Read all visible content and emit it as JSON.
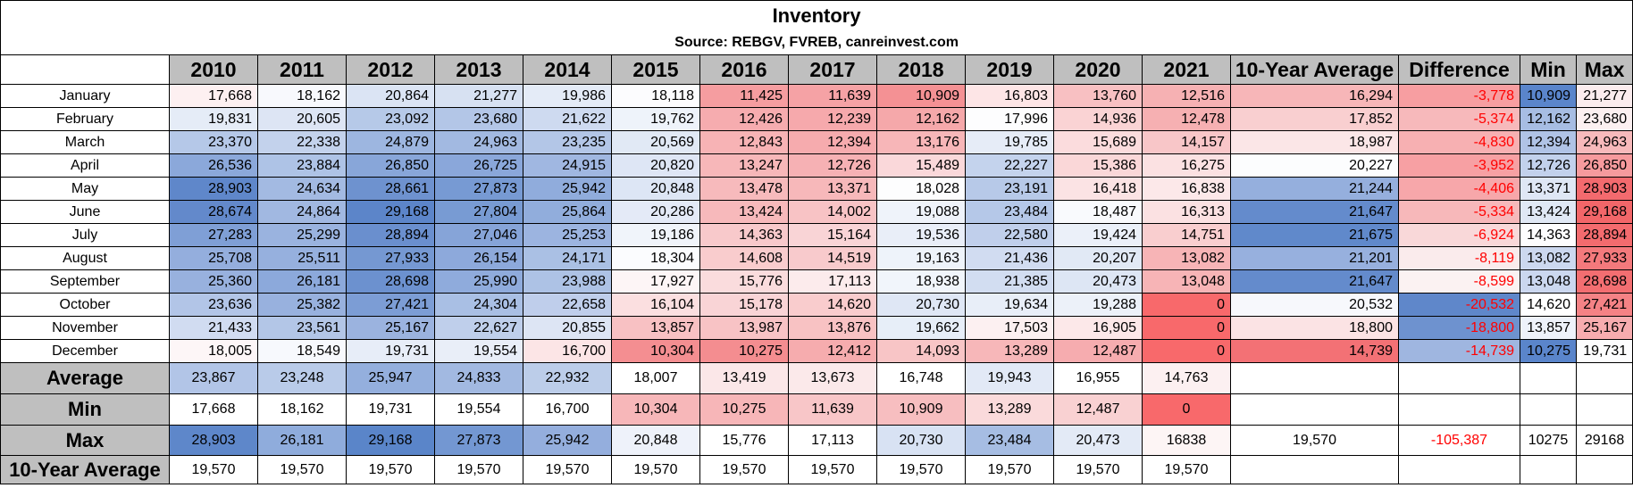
{
  "title": "Inventory",
  "source": "Source: REBGV, FVREB, canreinvest.com",
  "columns": [
    "2010",
    "2011",
    "2012",
    "2013",
    "2014",
    "2015",
    "2016",
    "2017",
    "2018",
    "2019",
    "2020",
    "2021",
    "10-Year Average",
    "Difference",
    "Min",
    "Max"
  ],
  "rows": [
    {
      "label": "January",
      "cells": [
        {
          "v": "17,668",
          "bg": "#fdf0f1"
        },
        {
          "v": "18,162",
          "bg": "#f8f9fd"
        },
        {
          "v": "20,864",
          "bg": "#dbe4f4"
        },
        {
          "v": "21,277",
          "bg": "#d7e1f2"
        },
        {
          "v": "19,986",
          "bg": "#e4ebf7"
        },
        {
          "v": "18,118",
          "bg": "#fcfcfe"
        },
        {
          "v": "11,425",
          "bg": "#f59da0"
        },
        {
          "v": "11,639",
          "bg": "#f5a2a5"
        },
        {
          "v": "10,909",
          "bg": "#f49194"
        },
        {
          "v": "16,803",
          "bg": "#fde5e6"
        },
        {
          "v": "13,760",
          "bg": "#f8c0c2"
        },
        {
          "v": "12,516",
          "bg": "#f6b1b3"
        },
        {
          "v": "16,294",
          "bg": "#f7b6b8"
        },
        {
          "v": "-3,778",
          "bg": "#f79ea1",
          "neg": true
        },
        {
          "v": "10,909",
          "bg": "#5a85cb"
        },
        {
          "v": "21,277",
          "bg": "#fbecee"
        }
      ]
    },
    {
      "label": "February",
      "cells": [
        {
          "v": "19,831",
          "bg": "#e5ecf7"
        },
        {
          "v": "20,605",
          "bg": "#dde5f4"
        },
        {
          "v": "23,092",
          "bg": "#b6c9e8"
        },
        {
          "v": "23,680",
          "bg": "#b3c6e7"
        },
        {
          "v": "21,622",
          "bg": "#cedaf0"
        },
        {
          "v": "19,762",
          "bg": "#eef3fa"
        },
        {
          "v": "12,426",
          "bg": "#f6acaf"
        },
        {
          "v": "12,239",
          "bg": "#f6a9ac"
        },
        {
          "v": "12,162",
          "bg": "#f5a8aa"
        },
        {
          "v": "17,996",
          "bg": "#fdfdfe"
        },
        {
          "v": "14,936",
          "bg": "#fad3d4"
        },
        {
          "v": "12,478",
          "bg": "#f6b0b2"
        },
        {
          "v": "17,852",
          "bg": "#f9cfd0"
        },
        {
          "v": "-5,374",
          "bg": "#f7b9bb",
          "neg": true
        },
        {
          "v": "12,162",
          "bg": "#a7bde3"
        },
        {
          "v": "23,680",
          "bg": "#fcf0f1"
        }
      ]
    },
    {
      "label": "March",
      "cells": [
        {
          "v": "23,370",
          "bg": "#b5c8e8"
        },
        {
          "v": "22,338",
          "bg": "#c3d2ec"
        },
        {
          "v": "24,879",
          "bg": "#9db6e0"
        },
        {
          "v": "24,963",
          "bg": "#a2b9e1"
        },
        {
          "v": "23,235",
          "bg": "#b3c6e7"
        },
        {
          "v": "20,569",
          "bg": "#e1e9f5"
        },
        {
          "v": "12,843",
          "bg": "#f7b3b5"
        },
        {
          "v": "12,394",
          "bg": "#f6abae"
        },
        {
          "v": "13,176",
          "bg": "#f7b6b8"
        },
        {
          "v": "19,785",
          "bg": "#e6ecf7"
        },
        {
          "v": "15,689",
          "bg": "#fbdcdd"
        },
        {
          "v": "14,157",
          "bg": "#f8c6c8"
        },
        {
          "v": "18,987",
          "bg": "#fbe6e7"
        },
        {
          "v": "-4,830",
          "bg": "#f7b0b2",
          "neg": true
        },
        {
          "v": "12,394",
          "bg": "#b0c3e6"
        },
        {
          "v": "24,963",
          "bg": "#f7b9bb"
        }
      ]
    },
    {
      "label": "April",
      "cells": [
        {
          "v": "26,536",
          "bg": "#8ba8da"
        },
        {
          "v": "23,884",
          "bg": "#aec3e6"
        },
        {
          "v": "26,850",
          "bg": "#88a6d9"
        },
        {
          "v": "26,725",
          "bg": "#8aa7da"
        },
        {
          "v": "24,915",
          "bg": "#a0b7e1"
        },
        {
          "v": "20,820",
          "bg": "#dee6f5"
        },
        {
          "v": "13,247",
          "bg": "#f7b7b9"
        },
        {
          "v": "12,726",
          "bg": "#f6b1b4"
        },
        {
          "v": "15,489",
          "bg": "#fad8da"
        },
        {
          "v": "22,227",
          "bg": "#c4d3ed"
        },
        {
          "v": "15,386",
          "bg": "#fad7d8"
        },
        {
          "v": "16,275",
          "bg": "#fbe1e2"
        },
        {
          "v": "20,227",
          "bg": "#fcfdfe"
        },
        {
          "v": "-3,952",
          "bg": "#f7a0a3",
          "neg": true
        },
        {
          "v": "12,726",
          "bg": "#c2d1ec"
        },
        {
          "v": "26,850",
          "bg": "#f69a9d"
        }
      ]
    },
    {
      "label": "May",
      "cells": [
        {
          "v": "28,903",
          "bg": "#5f87ca"
        },
        {
          "v": "24,634",
          "bg": "#a3bae2"
        },
        {
          "v": "28,661",
          "bg": "#6e92cf"
        },
        {
          "v": "27,873",
          "bg": "#779ad3"
        },
        {
          "v": "25,942",
          "bg": "#90acdc"
        },
        {
          "v": "20,848",
          "bg": "#dde6f5"
        },
        {
          "v": "13,478",
          "bg": "#f7babc"
        },
        {
          "v": "13,371",
          "bg": "#f7b8ba"
        },
        {
          "v": "18,028",
          "bg": "#fdfdfe"
        },
        {
          "v": "23,191",
          "bg": "#b7c9e8"
        },
        {
          "v": "16,418",
          "bg": "#fbe3e4"
        },
        {
          "v": "16,838",
          "bg": "#fce8e9"
        },
        {
          "v": "21,244",
          "bg": "#95afdd"
        },
        {
          "v": "-4,406",
          "bg": "#f7a7aa",
          "neg": true
        },
        {
          "v": "13,371",
          "bg": "#dfe7f5"
        },
        {
          "v": "28,903",
          "bg": "#f36a6e"
        }
      ]
    },
    {
      "label": "June",
      "cells": [
        {
          "v": "28,674",
          "bg": "#6389cb"
        },
        {
          "v": "24,864",
          "bg": "#a1b8e1"
        },
        {
          "v": "29,168",
          "bg": "#5c85c9"
        },
        {
          "v": "27,804",
          "bg": "#789bd3"
        },
        {
          "v": "25,864",
          "bg": "#91addc"
        },
        {
          "v": "20,286",
          "bg": "#e4eaf7"
        },
        {
          "v": "13,424",
          "bg": "#f7b9bb"
        },
        {
          "v": "14,002",
          "bg": "#f8c3c5"
        },
        {
          "v": "19,088",
          "bg": "#eff3fa"
        },
        {
          "v": "23,484",
          "bg": "#b5c8e8"
        },
        {
          "v": "18,487",
          "bg": "#f9fafd"
        },
        {
          "v": "16,313",
          "bg": "#fbe1e2"
        },
        {
          "v": "21,647",
          "bg": "#648bcc"
        },
        {
          "v": "-5,334",
          "bg": "#f7b8ba",
          "neg": true
        },
        {
          "v": "13,424",
          "bg": "#e0e8f5"
        },
        {
          "v": "29,168",
          "bg": "#f26669"
        }
      ]
    },
    {
      "label": "July",
      "cells": [
        {
          "v": "27,283",
          "bg": "#7f9fd6"
        },
        {
          "v": "25,299",
          "bg": "#9ab3df"
        },
        {
          "v": "28,894",
          "bg": "#6a8fce"
        },
        {
          "v": "27,046",
          "bg": "#86a4d8"
        },
        {
          "v": "25,253",
          "bg": "#9cb4e0"
        },
        {
          "v": "19,186",
          "bg": "#f0f4fa"
        },
        {
          "v": "14,363",
          "bg": "#f8c9cb"
        },
        {
          "v": "15,164",
          "bg": "#f9d4d6"
        },
        {
          "v": "19,536",
          "bg": "#e9eef8"
        },
        {
          "v": "22,580",
          "bg": "#c0cfeb"
        },
        {
          "v": "19,424",
          "bg": "#ebf0f9"
        },
        {
          "v": "14,751",
          "bg": "#f9cecf"
        },
        {
          "v": "21,675",
          "bg": "#6089cb"
        },
        {
          "v": "-6,924",
          "bg": "#f9d8d9",
          "neg": true
        },
        {
          "v": "14,363",
          "bg": "#fdfdfe"
        },
        {
          "v": "28,894",
          "bg": "#f36b6e"
        }
      ]
    },
    {
      "label": "August",
      "cells": [
        {
          "v": "25,708",
          "bg": "#94aedd"
        },
        {
          "v": "25,511",
          "bg": "#96b0de"
        },
        {
          "v": "27,933",
          "bg": "#7598d2"
        },
        {
          "v": "26,154",
          "bg": "#8da9db"
        },
        {
          "v": "24,171",
          "bg": "#aac0e4"
        },
        {
          "v": "18,304",
          "bg": "#fbfcfe"
        },
        {
          "v": "14,608",
          "bg": "#f9cccd"
        },
        {
          "v": "14,519",
          "bg": "#f8cacc"
        },
        {
          "v": "19,163",
          "bg": "#eef3fa"
        },
        {
          "v": "21,436",
          "bg": "#d1dcf1"
        },
        {
          "v": "20,207",
          "bg": "#e1e9f5"
        },
        {
          "v": "13,082",
          "bg": "#f7b4b6"
        },
        {
          "v": "21,201",
          "bg": "#97b0de"
        },
        {
          "v": "-8,119",
          "bg": "#faebec",
          "neg": true
        },
        {
          "v": "13,082",
          "bg": "#ccd8ef"
        },
        {
          "v": "27,933",
          "bg": "#f4797c"
        }
      ]
    },
    {
      "label": "September",
      "cells": [
        {
          "v": "25,360",
          "bg": "#98b1de"
        },
        {
          "v": "26,181",
          "bg": "#8ca9db"
        },
        {
          "v": "28,698",
          "bg": "#6c91cf"
        },
        {
          "v": "25,990",
          "bg": "#8fabdc"
        },
        {
          "v": "23,988",
          "bg": "#adc2e5"
        },
        {
          "v": "17,927",
          "bg": "#fdf5f6"
        },
        {
          "v": "15,776",
          "bg": "#fadcdd"
        },
        {
          "v": "17,113",
          "bg": "#fcebec"
        },
        {
          "v": "18,938",
          "bg": "#f1f5fb"
        },
        {
          "v": "21,385",
          "bg": "#d2ddf1"
        },
        {
          "v": "20,473",
          "bg": "#dde6f4"
        },
        {
          "v": "13,048",
          "bg": "#f7b4b6"
        },
        {
          "v": "21,647",
          "bg": "#648bcc"
        },
        {
          "v": "-8,599",
          "bg": "#fbf2f2",
          "neg": true
        },
        {
          "v": "13,048",
          "bg": "#cbd7ef"
        },
        {
          "v": "28,698",
          "bg": "#f36e71"
        }
      ]
    },
    {
      "label": "October",
      "cells": [
        {
          "v": "23,636",
          "bg": "#b2c5e7"
        },
        {
          "v": "25,382",
          "bg": "#98b1de"
        },
        {
          "v": "27,421",
          "bg": "#7c9dd5"
        },
        {
          "v": "24,304",
          "bg": "#a9bfe4"
        },
        {
          "v": "22,658",
          "bg": "#bfceeb"
        },
        {
          "v": "16,104",
          "bg": "#fbdfe0"
        },
        {
          "v": "15,178",
          "bg": "#f9d4d6"
        },
        {
          "v": "14,620",
          "bg": "#f9cccd"
        },
        {
          "v": "20,730",
          "bg": "#dfe7f5"
        },
        {
          "v": "19,634",
          "bg": "#e8eef8"
        },
        {
          "v": "19,288",
          "bg": "#ecf1f9"
        },
        {
          "v": "0",
          "bg": "#f8696b"
        },
        {
          "v": "20,532",
          "bg": "#f7f8fc"
        },
        {
          "v": "-20,532",
          "bg": "#5f87ca",
          "neg": true
        },
        {
          "v": "14,620",
          "bg": "#ffffff"
        },
        {
          "v": "27,421",
          "bg": "#f58285"
        }
      ]
    },
    {
      "label": "November",
      "cells": [
        {
          "v": "21,433",
          "bg": "#d1dcf1"
        },
        {
          "v": "23,561",
          "bg": "#b3c6e7"
        },
        {
          "v": "25,167",
          "bg": "#9bb3df"
        },
        {
          "v": "22,627",
          "bg": "#bfcfeb"
        },
        {
          "v": "20,855",
          "bg": "#dde5f4"
        },
        {
          "v": "13,857",
          "bg": "#f8c1c3"
        },
        {
          "v": "13,987",
          "bg": "#f8c3c5"
        },
        {
          "v": "13,876",
          "bg": "#f8c2c3"
        },
        {
          "v": "19,662",
          "bg": "#e7eef8"
        },
        {
          "v": "17,503",
          "bg": "#fcf0f1"
        },
        {
          "v": "16,905",
          "bg": "#fce8e9"
        },
        {
          "v": "0",
          "bg": "#f8696b"
        },
        {
          "v": "18,800",
          "bg": "#fbe3e4"
        },
        {
          "v": "-18,800",
          "bg": "#6e92cf",
          "neg": true
        },
        {
          "v": "13,857",
          "bg": "#eef2fa"
        },
        {
          "v": "25,167",
          "bg": "#f7acaf"
        }
      ]
    },
    {
      "label": "December",
      "cells": [
        {
          "v": "18,005",
          "bg": "#fdf6f7"
        },
        {
          "v": "18,549",
          "bg": "#f7f9fd"
        },
        {
          "v": "19,731",
          "bg": "#e7edf8"
        },
        {
          "v": "19,554",
          "bg": "#e9eef8"
        },
        {
          "v": "16,700",
          "bg": "#fce5e6"
        },
        {
          "v": "10,304",
          "bg": "#f48e91"
        },
        {
          "v": "10,275",
          "bg": "#f48d90"
        },
        {
          "v": "12,412",
          "bg": "#f6acae"
        },
        {
          "v": "14,093",
          "bg": "#f8c5c6"
        },
        {
          "v": "13,289",
          "bg": "#f7b7b9"
        },
        {
          "v": "12,487",
          "bg": "#f6acaf"
        },
        {
          "v": "0",
          "bg": "#f8696b"
        },
        {
          "v": "14,739",
          "bg": "#f37175"
        },
        {
          "v": "-14,739",
          "bg": "#9fb6e0",
          "neg": true
        },
        {
          "v": "10,275",
          "bg": "#5a85cb"
        },
        {
          "v": "19,731",
          "bg": "#fdfdfe"
        }
      ]
    }
  ],
  "summary": [
    {
      "label": "Average",
      "cells": [
        {
          "v": "23,867",
          "bg": "#b2c5e7"
        },
        {
          "v": "23,248",
          "bg": "#b9cbe9"
        },
        {
          "v": "25,947",
          "bg": "#94afdd"
        },
        {
          "v": "24,833",
          "bg": "#a2b9e1"
        },
        {
          "v": "22,932",
          "bg": "#bccde9"
        },
        {
          "v": "18,007",
          "bg": "#ffffff"
        },
        {
          "v": "13,419",
          "bg": "#fbe7e8"
        },
        {
          "v": "13,673",
          "bg": "#fbe9ea"
        },
        {
          "v": "16,748",
          "bg": "#ffffff"
        },
        {
          "v": "19,943",
          "bg": "#e2e9f6"
        },
        {
          "v": "16,955",
          "bg": "#ffffff"
        },
        {
          "v": "14,763",
          "bg": "#fcf0f1"
        },
        {
          "v": "",
          "bg": "#ffffff"
        },
        {
          "v": "",
          "bg": "#ffffff"
        },
        {
          "v": "",
          "bg": "#ffffff"
        },
        {
          "v": "",
          "bg": "#ffffff"
        }
      ]
    },
    {
      "label": "Min",
      "cells": [
        {
          "v": "17,668",
          "bg": "#ffffff"
        },
        {
          "v": "18,162",
          "bg": "#ffffff"
        },
        {
          "v": "19,731",
          "bg": "#ffffff"
        },
        {
          "v": "19,554",
          "bg": "#ffffff"
        },
        {
          "v": "16,700",
          "bg": "#ffffff"
        },
        {
          "v": "10,304",
          "bg": "#f7b7b9"
        },
        {
          "v": "10,275",
          "bg": "#f7b6b8"
        },
        {
          "v": "11,639",
          "bg": "#f8c6c8"
        },
        {
          "v": "10,909",
          "bg": "#f7bec0"
        },
        {
          "v": "13,289",
          "bg": "#fadadb"
        },
        {
          "v": "12,487",
          "bg": "#f9d1d2"
        },
        {
          "v": "0",
          "bg": "#f8696b"
        },
        {
          "v": "",
          "bg": "#ffffff"
        },
        {
          "v": "",
          "bg": "#ffffff"
        },
        {
          "v": "",
          "bg": "#ffffff"
        },
        {
          "v": "",
          "bg": "#ffffff"
        }
      ]
    },
    {
      "label": "Max",
      "cells": [
        {
          "v": "28,903",
          "bg": "#5e87ca"
        },
        {
          "v": "26,181",
          "bg": "#8facdc"
        },
        {
          "v": "29,168",
          "bg": "#5a85c9"
        },
        {
          "v": "27,873",
          "bg": "#7397d2"
        },
        {
          "v": "25,942",
          "bg": "#94aedd"
        },
        {
          "v": "20,848",
          "bg": "#eef2fa"
        },
        {
          "v": "15,776",
          "bg": "#ffffff"
        },
        {
          "v": "17,113",
          "bg": "#ffffff"
        },
        {
          "v": "20,730",
          "bg": "#d8e2f3"
        },
        {
          "v": "23,484",
          "bg": "#a6bde3"
        },
        {
          "v": "20,473",
          "bg": "#e3eaf6"
        },
        {
          "v": "16838",
          "bg": "#fdf5f5"
        },
        {
          "v": "19,570",
          "bg": "#ffffff"
        },
        {
          "v": "-105,387",
          "bg": "#ffffff",
          "neg": true
        },
        {
          "v": "10275",
          "bg": "#ffffff"
        },
        {
          "v": "29168",
          "bg": "#ffffff"
        }
      ]
    },
    {
      "label": "10-Year Average",
      "cells": [
        {
          "v": "19,570",
          "bg": "#ffffff"
        },
        {
          "v": "19,570",
          "bg": "#ffffff"
        },
        {
          "v": "19,570",
          "bg": "#ffffff"
        },
        {
          "v": "19,570",
          "bg": "#ffffff"
        },
        {
          "v": "19,570",
          "bg": "#ffffff"
        },
        {
          "v": "19,570",
          "bg": "#ffffff"
        },
        {
          "v": "19,570",
          "bg": "#ffffff"
        },
        {
          "v": "19,570",
          "bg": "#ffffff"
        },
        {
          "v": "19,570",
          "bg": "#ffffff"
        },
        {
          "v": "19,570",
          "bg": "#ffffff"
        },
        {
          "v": "19,570",
          "bg": "#ffffff"
        },
        {
          "v": "19,570",
          "bg": "#ffffff"
        },
        {
          "v": "",
          "bg": "#ffffff"
        },
        {
          "v": "",
          "bg": "#ffffff"
        },
        {
          "v": "",
          "bg": "#ffffff"
        },
        {
          "v": "",
          "bg": "#ffffff"
        }
      ]
    }
  ]
}
